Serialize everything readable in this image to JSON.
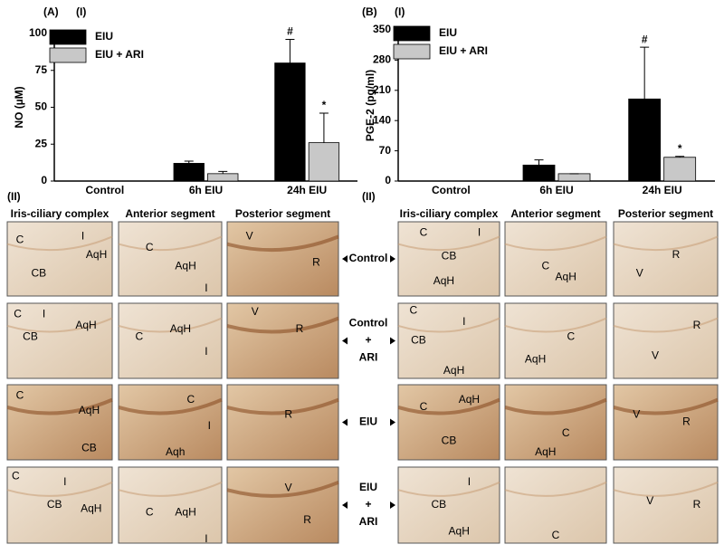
{
  "chart_data": [
    {
      "type": "bar",
      "panel_label": "(A)",
      "part_label": "(I)",
      "ylabel": "NO (µM)",
      "categories": [
        "Control",
        "6h EIU",
        "24h EIU"
      ],
      "series": [
        {
          "name": "EIU",
          "color": "#000000",
          "values": [
            0,
            12,
            80
          ],
          "errors": [
            0,
            1.5,
            16
          ],
          "marks": [
            null,
            null,
            "#"
          ]
        },
        {
          "name": "EIU + ARI",
          "color": "#c8c8c8",
          "values": [
            0,
            5,
            26
          ],
          "errors": [
            0,
            1.5,
            20
          ],
          "marks": [
            null,
            null,
            "*"
          ]
        }
      ],
      "ylim": [
        0,
        100
      ],
      "yticks": [
        0,
        25,
        50,
        75,
        100
      ],
      "legend": "upper left"
    },
    {
      "type": "bar",
      "panel_label": "(B)",
      "part_label": "(I)",
      "ylabel": "PGE-2 (pg/ml)",
      "categories": [
        "Control",
        "6h EIU",
        "24h EIU"
      ],
      "series": [
        {
          "name": "EIU",
          "color": "#000000",
          "values": [
            0,
            37,
            190
          ],
          "errors": [
            0,
            12,
            120
          ],
          "marks": [
            null,
            null,
            "#"
          ]
        },
        {
          "name": "EIU + ARI",
          "color": "#c8c8c8",
          "values": [
            0,
            17,
            55
          ],
          "errors": [
            0,
            0,
            2
          ],
          "marks": [
            null,
            null,
            "*"
          ]
        }
      ],
      "ylim": [
        0,
        350
      ],
      "yticks": [
        0,
        70,
        140,
        210,
        280,
        350
      ],
      "legend": "upper left"
    }
  ],
  "micrographs": [
    {
      "part_label": "(II)",
      "columns": [
        "Iris-ciliary complex",
        "Anterior segment",
        "Posterior segment"
      ],
      "rows": [
        [
          [
            "C",
            "I",
            "AqH",
            "CB"
          ],
          [
            "C",
            "AqH",
            "I"
          ],
          [
            "V",
            "R"
          ]
        ],
        [
          [
            "C",
            "I",
            "AqH",
            "CB"
          ],
          [
            "C",
            "AqH",
            "I"
          ],
          [
            "V",
            "R"
          ]
        ],
        [
          [
            "C",
            "AqH",
            "CB"
          ],
          [
            "C",
            "I",
            "Aqh"
          ],
          [
            "R"
          ]
        ],
        [
          [
            "C",
            "I",
            "CB",
            "AqH"
          ],
          [
            "C",
            "AqH",
            "I"
          ],
          [
            "V",
            "R"
          ]
        ]
      ]
    },
    {
      "part_label": "(II)",
      "columns": [
        "Iris-ciliary complex",
        "Anterior segment",
        "Posterior segment"
      ],
      "rows": [
        [
          [
            "C",
            "I",
            "CB",
            "AqH"
          ],
          [
            "C",
            "AqH"
          ],
          [
            "V",
            "R"
          ]
        ],
        [
          [
            "C",
            "I",
            "CB",
            "AqH"
          ],
          [
            "C",
            "AqH"
          ],
          [
            "V",
            "R"
          ]
        ],
        [
          [
            "C",
            "AqH",
            "CB"
          ],
          [
            "C",
            "AqH"
          ],
          [
            "V",
            "R"
          ]
        ],
        [
          [
            "I",
            "CB",
            "AqH"
          ],
          [
            "C"
          ],
          [
            "V",
            "R"
          ]
        ]
      ]
    }
  ],
  "row_labels": [
    [
      "Control"
    ],
    [
      "Control",
      "+",
      "ARI"
    ],
    [
      "EIU"
    ],
    [
      "EIU",
      "+",
      "ARI"
    ]
  ]
}
